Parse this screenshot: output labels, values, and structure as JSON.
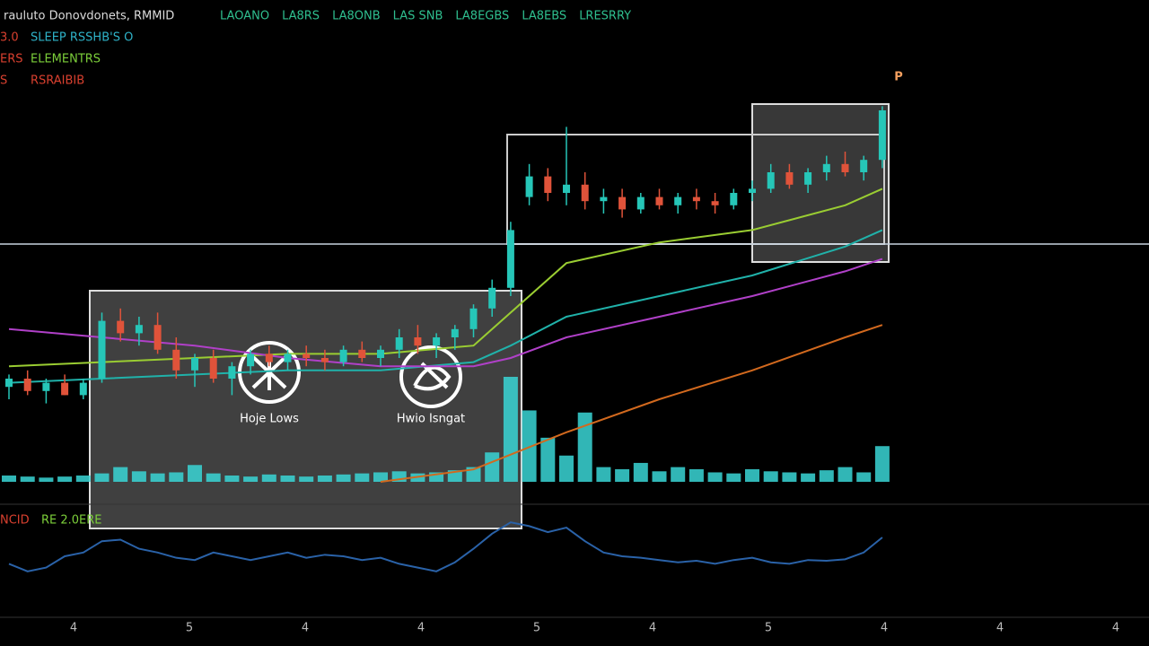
{
  "header": {
    "title": "rauluto Donovdonets, RMMID",
    "tags": [
      "LAOANO",
      "LA8RS",
      "LA8ONB",
      "LAS SNB",
      "LA8EGBS",
      "LA8EBS",
      "LRESRRY"
    ],
    "tag_color": "#2fbf8f"
  },
  "legend": [
    {
      "prefix": "3.0",
      "label": "SLEEP RSSHB'S O",
      "color": "#2fb3c9"
    },
    {
      "prefix": "ERS",
      "label": "ELEMENTRS",
      "color": "#7ccf3a"
    },
    {
      "prefix": "S",
      "label": "RSRAIBIB",
      "color": "#d9402f"
    }
  ],
  "annotations": [
    {
      "label": "Hoje Lows"
    },
    {
      "label": "Hwio Isngat"
    }
  ],
  "marker": "P",
  "oscillator_label": "NCID",
  "oscillator_sublabel": "RE 2.0ERE",
  "x_labels": [
    "4",
    "5",
    "4",
    "4",
    "5",
    "4",
    "5",
    "4",
    "4",
    "4"
  ],
  "chart_data": {
    "type": "candlestick",
    "ylim": [
      0,
      100
    ],
    "level": 62.6,
    "candles": [
      [
        28,
        31,
        25,
        30
      ],
      [
        30,
        32,
        26,
        27
      ],
      [
        27,
        30,
        24,
        29
      ],
      [
        29,
        31,
        26,
        26
      ],
      [
        26,
        30,
        25,
        29
      ],
      [
        30,
        46,
        29,
        44
      ],
      [
        44,
        47,
        39,
        41
      ],
      [
        41,
        45,
        38,
        43
      ],
      [
        43,
        46,
        36,
        37
      ],
      [
        37,
        40,
        30,
        32
      ],
      [
        32,
        36,
        28,
        35
      ],
      [
        35,
        37,
        29,
        30
      ],
      [
        30,
        34,
        26,
        33
      ],
      [
        33,
        37,
        31,
        36
      ],
      [
        36,
        38,
        33,
        34
      ],
      [
        34,
        37,
        32,
        36
      ],
      [
        36,
        38,
        33,
        35
      ],
      [
        35,
        37,
        32,
        34
      ],
      [
        34,
        38,
        33,
        37
      ],
      [
        37,
        39,
        34,
        35
      ],
      [
        35,
        38,
        33,
        37
      ],
      [
        37,
        42,
        35,
        40
      ],
      [
        40,
        43,
        36,
        38
      ],
      [
        38,
        41,
        35,
        40
      ],
      [
        40,
        43,
        37,
        42
      ],
      [
        42,
        48,
        40,
        47
      ],
      [
        47,
        54,
        45,
        52
      ],
      [
        52,
        68,
        50,
        66
      ],
      [
        74,
        82,
        72,
        79
      ],
      [
        79,
        81,
        73,
        75
      ],
      [
        75,
        91,
        72,
        77
      ],
      [
        77,
        80,
        71,
        73
      ],
      [
        73,
        76,
        70,
        74
      ],
      [
        74,
        76,
        69,
        71
      ],
      [
        71,
        75,
        70,
        74
      ],
      [
        74,
        76,
        71,
        72
      ],
      [
        72,
        75,
        70,
        74
      ],
      [
        74,
        76,
        71,
        73
      ],
      [
        73,
        75,
        70,
        72
      ],
      [
        72,
        76,
        71,
        75
      ],
      [
        75,
        78,
        73,
        76
      ],
      [
        76,
        82,
        75,
        80
      ],
      [
        80,
        82,
        76,
        77
      ],
      [
        77,
        81,
        75,
        80
      ],
      [
        80,
        84,
        78,
        82
      ],
      [
        82,
        85,
        79,
        80
      ],
      [
        80,
        84,
        78,
        83
      ],
      [
        83,
        96,
        81,
        95
      ]
    ],
    "moving_averages": [
      {
        "color": "#9acd32",
        "x": [
          0,
          5,
          10,
          15,
          20,
          25,
          27,
          30,
          35,
          40,
          45,
          47
        ],
        "values": [
          33,
          34,
          35,
          36,
          36,
          38,
          46,
          58,
          63,
          66,
          72,
          76
        ]
      },
      {
        "color": "#20b2aa",
        "x": [
          0,
          5,
          10,
          15,
          20,
          25,
          27,
          30,
          35,
          40,
          45,
          47
        ],
        "values": [
          29,
          30,
          31,
          32,
          32,
          34,
          38,
          45,
          50,
          55,
          62,
          66
        ]
      },
      {
        "color": "#b040c8",
        "x": [
          0,
          5,
          10,
          15,
          20,
          25,
          27,
          30,
          35,
          40,
          45,
          47
        ],
        "values": [
          42,
          40,
          38,
          35,
          33,
          33,
          35,
          40,
          45,
          50,
          56,
          59
        ]
      },
      {
        "color": "#d2691e",
        "x": [
          20,
          25,
          30,
          35,
          40,
          45,
          47
        ],
        "values": [
          5,
          8,
          17,
          25,
          32,
          40,
          43
        ]
      }
    ],
    "volume": {
      "ylim": [
        0,
        100
      ],
      "color": "#3ad6d6",
      "values": [
        6,
        5,
        4,
        5,
        6,
        8,
        14,
        10,
        8,
        9,
        16,
        8,
        6,
        5,
        7,
        6,
        5,
        6,
        7,
        8,
        9,
        10,
        8,
        9,
        11,
        14,
        28,
        100,
        68,
        42,
        25,
        66,
        14,
        12,
        18,
        10,
        14,
        12,
        9,
        8,
        12,
        10,
        9,
        8,
        11,
        14,
        9,
        34
      ]
    },
    "oscillator": {
      "ylim": [
        0,
        100
      ],
      "color": "#2a62a8",
      "values": [
        40,
        30,
        35,
        50,
        55,
        70,
        72,
        60,
        55,
        48,
        45,
        55,
        50,
        45,
        50,
        55,
        48,
        52,
        50,
        45,
        48,
        40,
        35,
        30,
        42,
        60,
        80,
        95,
        90,
        82,
        88,
        70,
        55,
        50,
        48,
        45,
        42,
        44,
        40,
        45,
        48,
        42,
        40,
        45,
        44,
        46,
        55,
        75
      ]
    }
  }
}
